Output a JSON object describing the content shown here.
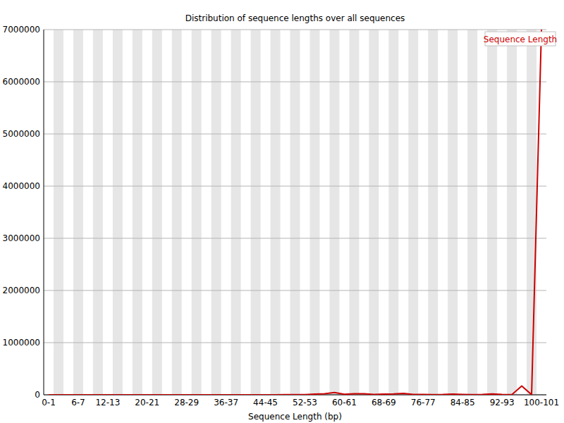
{
  "chart_data": {
    "type": "line",
    "title": "Distribution of sequence lengths over all sequences",
    "x_label": "Sequence Length (bp)",
    "categories": [
      "0-1",
      null,
      null,
      "6-7",
      null,
      null,
      "12-13",
      null,
      null,
      null,
      "20-21",
      null,
      null,
      null,
      "28-29",
      null,
      null,
      null,
      "36-37",
      null,
      null,
      null,
      "44-45",
      null,
      null,
      null,
      "52-53",
      null,
      null,
      null,
      "60-61",
      null,
      null,
      null,
      "68-69",
      null,
      null,
      null,
      "76-77",
      null,
      null,
      null,
      "84-85",
      null,
      null,
      null,
      "92-93",
      null,
      null,
      null,
      "100-101"
    ],
    "series": [
      {
        "name": "Sequence Length",
        "color": "#cc0000",
        "values": [
          0,
          0,
          0,
          0,
          0,
          0,
          0,
          0,
          0,
          0,
          0,
          0,
          0,
          0,
          0,
          0,
          0,
          0,
          0,
          0,
          0,
          0,
          0,
          0,
          2000,
          3000,
          5000,
          15000,
          20000,
          45000,
          10000,
          20000,
          20000,
          8000,
          15000,
          18000,
          28000,
          8000,
          6000,
          5000,
          6000,
          15000,
          8000,
          5000,
          8000,
          18000,
          6000,
          5000,
          170000,
          2000,
          7000000
        ]
      }
    ],
    "ylim": [
      0,
      7000000
    ],
    "yticks": [
      0,
      1000000,
      2000000,
      3000000,
      4000000,
      5000000,
      6000000,
      7000000
    ],
    "grid": true,
    "legend": "top-right"
  }
}
